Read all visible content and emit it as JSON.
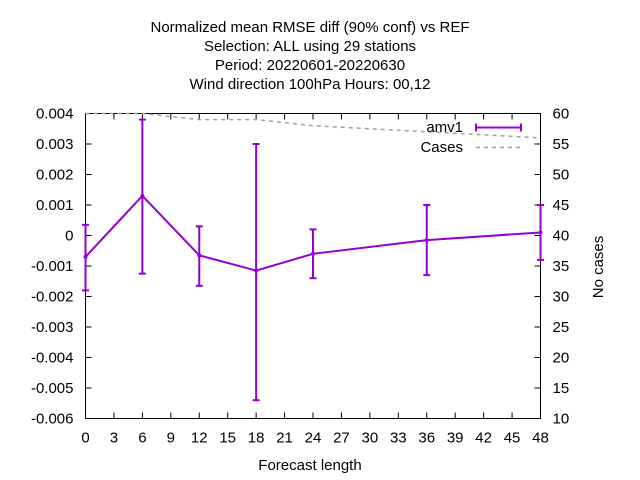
{
  "chart_data": {
    "type": "line",
    "title_lines": [
      "Normalized mean RMSE diff (90% conf) vs REF",
      "Selection: ALL using    29 stations",
      "Period: 20220601-20220630",
      "Wind direction 100hPa   Hours: 00,12"
    ],
    "xlabel": "Forecast length",
    "ylabel": "",
    "y2label": "No cases",
    "xlim": [
      0,
      48
    ],
    "ylim": [
      -0.006,
      0.004
    ],
    "y2lim": [
      10,
      60
    ],
    "x_ticks": [
      0,
      3,
      6,
      9,
      12,
      15,
      18,
      21,
      24,
      27,
      30,
      33,
      36,
      39,
      42,
      45,
      48
    ],
    "x_tick_labels": [
      "0",
      "3",
      "6",
      "9",
      "12",
      "15",
      "18",
      "21",
      "24",
      "27",
      "30",
      "33",
      "36",
      "39",
      "42",
      "45",
      "48"
    ],
    "y_ticks": [
      0.004,
      0.003,
      0.002,
      0.001,
      0,
      -0.001,
      -0.002,
      -0.003,
      -0.004,
      -0.005,
      -0.006
    ],
    "y_tick_labels": [
      "0.004",
      "0.003",
      "0.002",
      "0.001",
      "0",
      "-0.001",
      "-0.002",
      "-0.003",
      "-0.004",
      "-0.005",
      "-0.006"
    ],
    "y2_ticks": [
      60,
      55,
      50,
      45,
      40,
      35,
      30,
      25,
      20,
      15,
      10
    ],
    "y2_tick_labels": [
      "60",
      "55",
      "50",
      "45",
      "40",
      "35",
      "30",
      "25",
      "20",
      "15",
      "10"
    ],
    "series": [
      {
        "name": "amv1",
        "color": "#9400d3",
        "style": "line-errorbars",
        "x": [
          0,
          6,
          12,
          18,
          24,
          36,
          48
        ],
        "values": [
          -0.0007,
          0.0013,
          -0.00065,
          -0.00115,
          -0.0006,
          -0.00015,
          0.0001
        ],
        "err_low": [
          -0.0018,
          -0.00125,
          -0.00165,
          -0.0054,
          -0.0014,
          -0.0013,
          -0.0008
        ],
        "err_high": [
          0.00035,
          0.0038,
          0.0003,
          0.003,
          0.0002,
          0.001,
          0.001
        ]
      },
      {
        "name": "Cases",
        "color": "#a0a0a0",
        "style": "dashed",
        "axis": "y2",
        "x": [
          0,
          6,
          12,
          18,
          24,
          36,
          48
        ],
        "values": [
          60,
          60,
          59,
          59,
          58,
          57,
          56
        ]
      }
    ]
  }
}
